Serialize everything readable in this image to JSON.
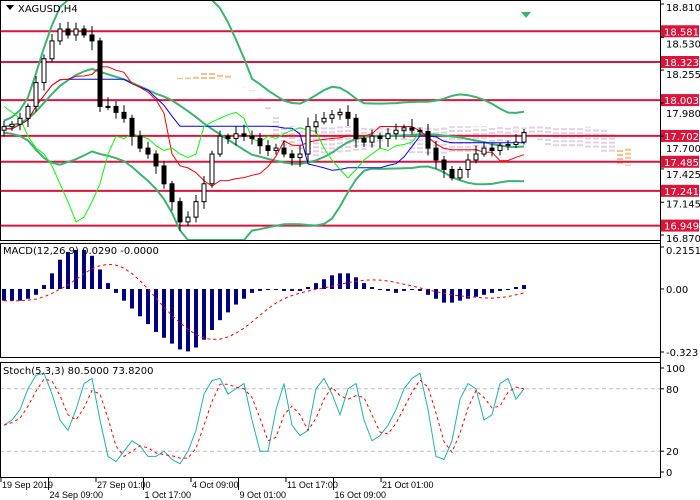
{
  "chart_data": {
    "type": "candlestick",
    "symbol_label": "XAGUSD,H4",
    "price_axis": {
      "ticks": [
        "18.810",
        "18.530",
        "18.255",
        "17.980",
        "17.700",
        "17.425",
        "17.145",
        "16.870"
      ],
      "range": [
        16.87,
        18.81
      ]
    },
    "levels": [
      {
        "value": 18.581,
        "label": "18.581"
      },
      {
        "value": 18.323,
        "label": "18.323"
      },
      {
        "value": 18.003,
        "label": "18.003"
      },
      {
        "value": 17.702,
        "label": "17.702"
      },
      {
        "value": 17.485,
        "label": "17.485"
      },
      {
        "value": 17.241,
        "label": "17.241"
      },
      {
        "value": 16.949,
        "label": "16.949"
      }
    ],
    "closes": [
      17.78,
      17.8,
      17.85,
      17.95,
      18.15,
      18.35,
      18.5,
      18.6,
      18.55,
      18.6,
      18.55,
      18.5,
      17.95,
      17.95,
      17.9,
      17.85,
      17.7,
      17.6,
      17.55,
      17.45,
      17.3,
      17.15,
      16.98,
      17.02,
      17.15,
      17.3,
      17.55,
      17.7,
      17.68,
      17.72,
      17.7,
      17.68,
      17.62,
      17.58,
      17.6,
      17.55,
      17.52,
      17.55,
      17.78,
      17.82,
      17.85,
      17.88,
      17.9,
      17.85,
      17.68,
      17.65,
      17.7,
      17.68,
      17.72,
      17.75,
      17.77,
      17.75,
      17.74,
      17.6,
      17.5,
      17.42,
      17.35,
      17.42,
      17.5,
      17.55,
      17.6,
      17.58,
      17.62,
      17.63,
      17.65,
      17.73
    ],
    "time_axis": [
      "19 Sep 2019",
      "24 Sep 09:00",
      "27 Sep 01:00",
      "1 Oct 17:00",
      "4 Oct 09:00",
      "9 Oct 01:00",
      "11 Oct 17:00",
      "16 Oct 09:00",
      "21 Oct 01:00"
    ],
    "macd": {
      "label": "MACD(12,26,9) 0.0290 -0.0000",
      "ticks": [
        "0.2151",
        "0.00",
        "-0.323"
      ],
      "range": [
        -0.323,
        0.2151
      ],
      "values": [
        -0.06,
        -0.06,
        -0.06,
        -0.05,
        -0.03,
        0.02,
        0.08,
        0.15,
        0.19,
        0.2,
        0.2,
        0.17,
        0.1,
        0.03,
        -0.02,
        -0.06,
        -0.1,
        -0.14,
        -0.18,
        -0.22,
        -0.25,
        -0.28,
        -0.31,
        -0.32,
        -0.3,
        -0.26,
        -0.21,
        -0.16,
        -0.12,
        -0.08,
        -0.05,
        -0.02,
        -0.01,
        0,
        0,
        -0.01,
        -0.01,
        -0.01,
        0.01,
        0.03,
        0.05,
        0.07,
        0.08,
        0.08,
        0.06,
        0.03,
        0.01,
        0,
        -0.01,
        -0.02,
        -0.01,
        0,
        -0.01,
        -0.03,
        -0.05,
        -0.07,
        -0.07,
        -0.06,
        -0.05,
        -0.04,
        -0.03,
        -0.02,
        -0.01,
        0,
        0.01,
        0.02
      ]
    },
    "stoch": {
      "label": "Stoch(5,3,3) 80.5000 73.8200",
      "ticks": [
        "100",
        "80",
        "20",
        "0"
      ],
      "levels": [
        80,
        20
      ],
      "values": [
        45,
        50,
        60,
        80,
        93,
        95,
        75,
        50,
        40,
        60,
        85,
        90,
        50,
        15,
        10,
        20,
        30,
        25,
        15,
        15,
        20,
        12,
        8,
        20,
        40,
        75,
        88,
        90,
        75,
        80,
        85,
        50,
        20,
        20,
        60,
        85,
        45,
        35,
        40,
        80,
        90,
        75,
        55,
        80,
        85,
        50,
        30,
        35,
        45,
        60,
        80,
        90,
        95,
        60,
        15,
        12,
        30,
        70,
        85,
        80,
        50,
        55,
        85,
        90,
        70,
        80
      ]
    },
    "colors": {
      "level": "#dc143c",
      "bands": "#3cb371",
      "tenkan": "#ff0000",
      "kijun": "#0000ff",
      "chikou": "#00ff00",
      "macd": "#000080",
      "signal": "#ff0000",
      "stoch_main": "#20b2aa",
      "stoch_signal": "#ff0000"
    }
  }
}
